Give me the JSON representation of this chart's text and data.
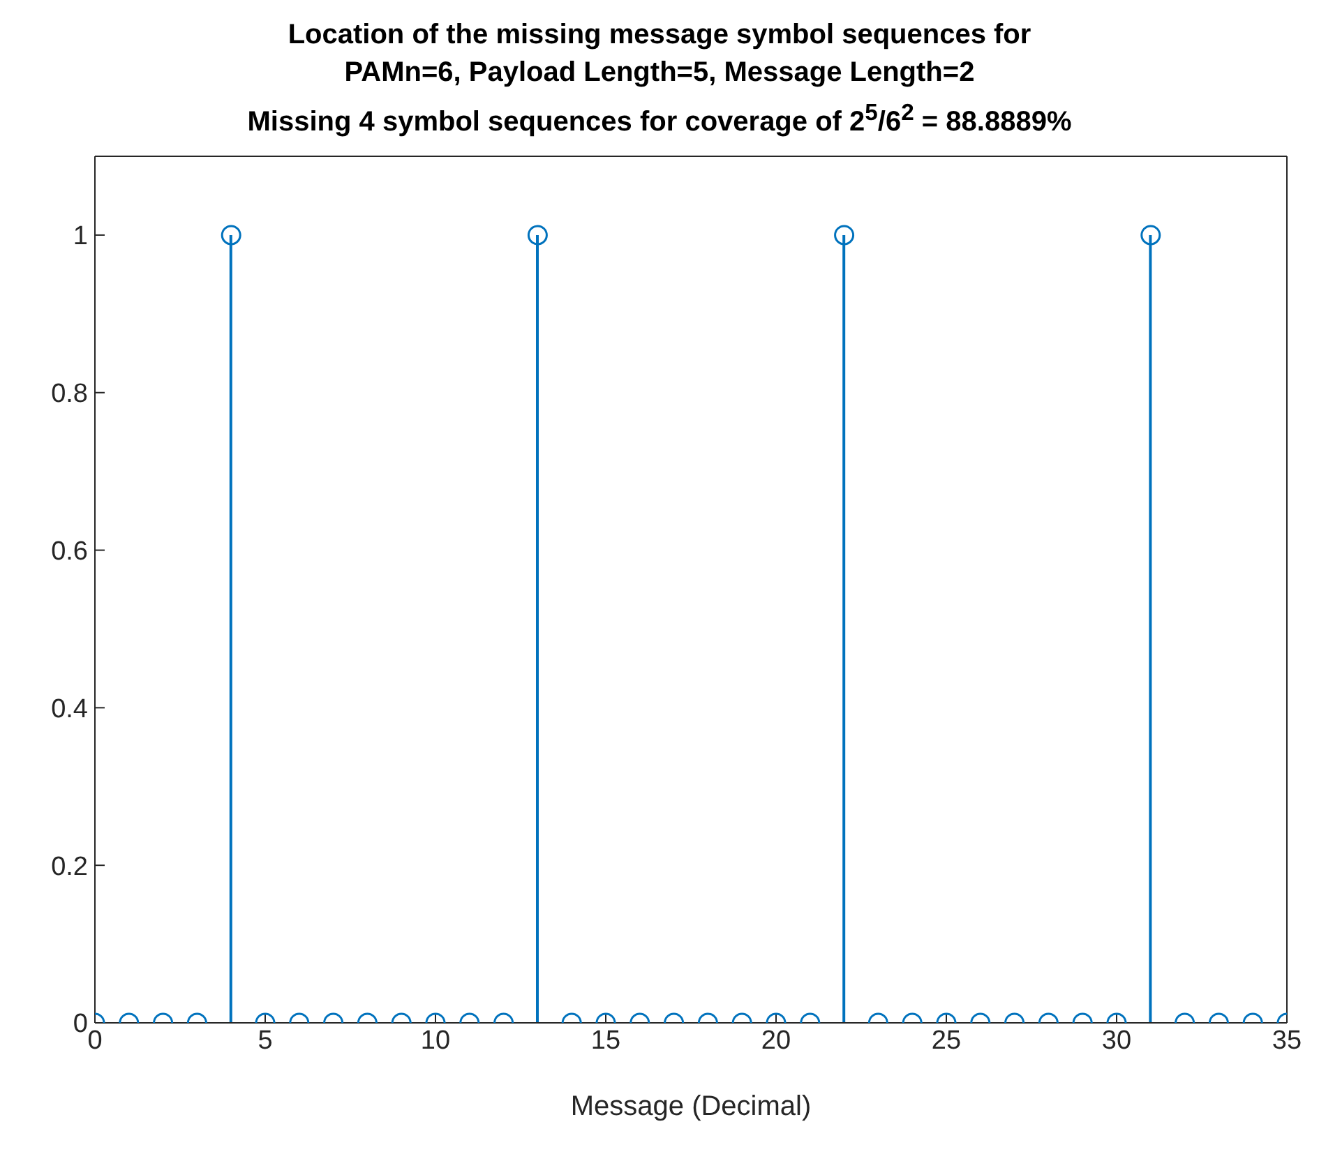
{
  "chart_data": {
    "type": "lollipop",
    "title": "Location of the missing message symbol sequences for\nPAMn=6, Payload Length=5, Message Length=2",
    "subtitle": "Missing 4 symbol sequences for coverage of 2$^{5}$/6$^{2}$ = 88.8889%",
    "xlabel": "Message (Decimal)",
    "x": [
      0,
      1,
      2,
      3,
      4,
      5,
      6,
      7,
      8,
      9,
      10,
      11,
      12,
      13,
      14,
      15,
      16,
      17,
      18,
      19,
      20,
      21,
      22,
      23,
      24,
      25,
      26,
      27,
      28,
      29,
      30,
      31,
      32,
      33,
      34,
      35
    ],
    "values": [
      0,
      0,
      0,
      0,
      1,
      0,
      0,
      0,
      0,
      0,
      0,
      0,
      0,
      1,
      0,
      0,
      0,
      0,
      0,
      0,
      0,
      0,
      1,
      0,
      0,
      0,
      0,
      0,
      0,
      0,
      0,
      1,
      0,
      0,
      0,
      0
    ],
    "color": "#0072bd",
    "marker": "circle",
    "grid": false,
    "xlim": [
      0,
      35
    ],
    "xticks": [
      0,
      5,
      10,
      15,
      20,
      25,
      30,
      35
    ],
    "ylim": [
      0,
      1.1
    ],
    "yticks": [
      0,
      0.2,
      0.4,
      0.6,
      0.8,
      1
    ]
  }
}
